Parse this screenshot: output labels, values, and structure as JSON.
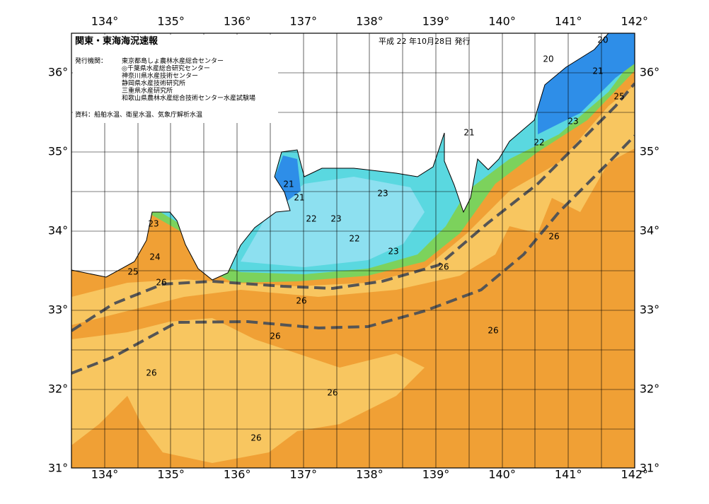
{
  "header": {
    "title": "関東・東海海況速報",
    "date": "平成 22 年10月28日 発行",
    "issuer_label": "発行機関：",
    "issuers": [
      "東京都島しょ農林水産総合センター",
      "◎千葉県水産総合研究センター",
      "神奈川県水産技術センター",
      "静岡県水産技術研究所",
      "三重県水産研究所",
      "和歌山県農林水産総合技術センター水産試験場"
    ],
    "source": "資料：船舶水温、衛星水温、気象庁解析水温"
  },
  "map": {
    "lon_labels": [
      "134°",
      "135°",
      "136°",
      "137°",
      "138°",
      "139°",
      "140°",
      "141°",
      "142°"
    ],
    "lat_labels": [
      "36°",
      "35°",
      "34°",
      "33°",
      "32°",
      "31°"
    ],
    "contour_labels": [
      "20",
      "20",
      "21",
      "25",
      "23",
      "22",
      "21",
      "21",
      "21",
      "22",
      "23",
      "23",
      "22",
      "23",
      "23",
      "24",
      "25",
      "26",
      "26",
      "26",
      "26",
      "26",
      "26",
      "26",
      "26",
      "26"
    ]
  }
}
